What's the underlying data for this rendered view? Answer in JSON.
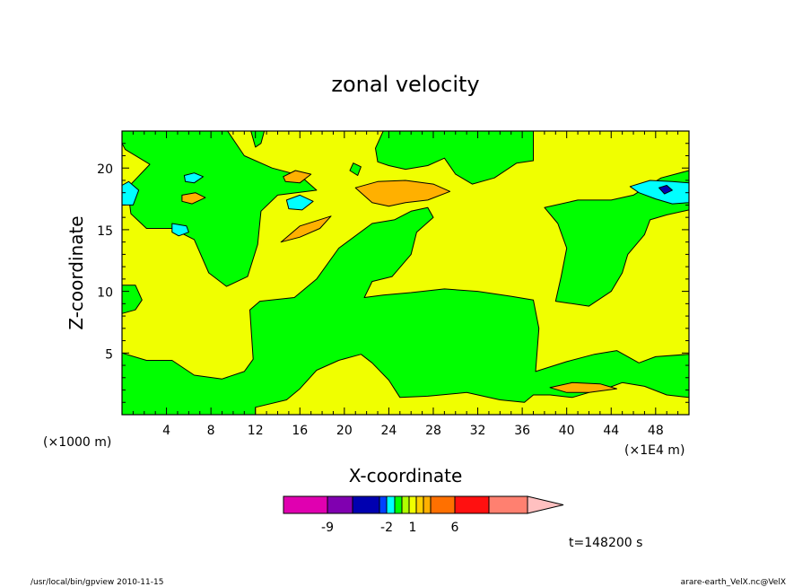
{
  "chart_data": {
    "type": "heatmap",
    "title": "zonal velocity",
    "xlabel": "X-coordinate",
    "ylabel": "Z-coordinate",
    "x_units_note": "(×1E4 m)",
    "y_units_note": "(×1000 m)",
    "xlim": [
      0,
      51
    ],
    "ylim": [
      0,
      23
    ],
    "x_ticks": [
      "4",
      "8",
      "12",
      "16",
      "20",
      "24",
      "28",
      "32",
      "36",
      "40",
      "44",
      "48"
    ],
    "y_ticks": [
      "5",
      "10",
      "15",
      "20"
    ],
    "x_tick_values": [
      4,
      8,
      12,
      16,
      20,
      24,
      28,
      32,
      36,
      40,
      44,
      48
    ],
    "y_tick_values": [
      5,
      10,
      15,
      20
    ],
    "background_level_color": "#f0ff00",
    "regions": [
      {
        "level": "green",
        "color": "#00ff00",
        "points": [
          [
            0,
            23
          ],
          [
            9.5,
            23
          ],
          [
            11,
            21
          ],
          [
            13.5,
            20
          ],
          [
            16,
            19.4
          ],
          [
            17.5,
            18.2
          ],
          [
            14,
            17.8
          ],
          [
            12.5,
            16.5
          ],
          [
            12.2,
            13.8
          ],
          [
            11.3,
            11.2
          ],
          [
            9.4,
            10.4
          ],
          [
            7.8,
            11.5
          ],
          [
            6.5,
            14.2
          ],
          [
            4.5,
            15.1
          ],
          [
            2.2,
            15.1
          ],
          [
            0.8,
            16.3
          ],
          [
            0.5,
            18.4
          ],
          [
            2.5,
            20.3
          ],
          [
            0.3,
            21.5
          ],
          [
            0,
            22
          ]
        ]
      },
      {
        "level": "green",
        "color": "#00ff00",
        "points": [
          [
            0,
            10.5
          ],
          [
            1.2,
            10.5
          ],
          [
            1.8,
            9.3
          ],
          [
            1.2,
            8.5
          ],
          [
            0,
            8.2
          ]
        ]
      },
      {
        "level": "green",
        "color": "#00ff00",
        "points": [
          [
            0,
            5
          ],
          [
            2.2,
            4.4
          ],
          [
            4.5,
            4.4
          ],
          [
            6.5,
            3.2
          ],
          [
            9,
            2.9
          ],
          [
            11,
            3.5
          ],
          [
            11.8,
            4.5
          ],
          [
            11.5,
            8.5
          ],
          [
            12.4,
            9.2
          ],
          [
            15.5,
            9.5
          ],
          [
            17.5,
            11
          ],
          [
            19.5,
            13.5
          ],
          [
            22.5,
            15.5
          ],
          [
            24.5,
            15.8
          ],
          [
            26,
            16.5
          ],
          [
            27.5,
            16.8
          ],
          [
            28,
            16
          ],
          [
            26.5,
            14.8
          ],
          [
            26,
            13
          ],
          [
            24.3,
            11.2
          ],
          [
            22.5,
            10.8
          ],
          [
            21.8,
            9.5
          ],
          [
            23.5,
            9.7
          ],
          [
            26,
            9.9
          ],
          [
            29,
            10.2
          ],
          [
            32,
            10
          ],
          [
            35,
            9.6
          ],
          [
            37,
            9.3
          ],
          [
            37.5,
            7
          ],
          [
            37.2,
            3.5
          ],
          [
            40,
            4.3
          ],
          [
            42.5,
            4.9
          ],
          [
            44.5,
            5.2
          ],
          [
            46.5,
            4.2
          ],
          [
            48,
            4.7
          ],
          [
            51,
            4.9
          ],
          [
            51,
            1.4
          ],
          [
            49,
            1.6
          ],
          [
            47,
            2.3
          ],
          [
            45,
            2.6
          ],
          [
            43.5,
            2.1
          ],
          [
            42,
            1.8
          ],
          [
            40.5,
            1.4
          ],
          [
            38.5,
            1.6
          ],
          [
            37,
            1.6
          ],
          [
            36.2,
            1
          ],
          [
            34,
            1.2
          ],
          [
            31,
            1.8
          ],
          [
            27.5,
            1.5
          ],
          [
            25,
            1.4
          ],
          [
            24,
            2.8
          ],
          [
            22.5,
            4.2
          ],
          [
            21.5,
            4.9
          ],
          [
            19.5,
            4.4
          ],
          [
            17.5,
            3.6
          ],
          [
            16,
            2.1
          ],
          [
            14.8,
            1.2
          ],
          [
            12,
            0.6
          ],
          [
            12,
            0
          ],
          [
            0,
            0
          ]
        ]
      },
      {
        "level": "green",
        "color": "#00ff00",
        "points": [
          [
            33,
            23
          ],
          [
            37,
            23
          ],
          [
            37,
            20.6
          ],
          [
            35.5,
            20.4
          ],
          [
            33.5,
            19.2
          ],
          [
            31.5,
            18.7
          ],
          [
            30,
            19.5
          ],
          [
            29,
            20.8
          ],
          [
            27.5,
            20.2
          ],
          [
            25.5,
            19.9
          ],
          [
            24,
            20.2
          ],
          [
            23,
            20.5
          ],
          [
            22.8,
            21.6
          ],
          [
            23.5,
            23
          ]
        ]
      },
      {
        "level": "green",
        "color": "#00ff00",
        "points": [
          [
            38,
            16.8
          ],
          [
            41,
            17.4
          ],
          [
            44,
            17.4
          ],
          [
            46,
            17.8
          ],
          [
            48.5,
            19.2
          ],
          [
            51,
            19.8
          ],
          [
            51,
            16.6
          ],
          [
            49,
            16.2
          ],
          [
            47.5,
            15.8
          ],
          [
            47,
            14.6
          ],
          [
            45.5,
            13
          ],
          [
            45,
            11.5
          ],
          [
            44,
            10
          ],
          [
            42,
            8.8
          ],
          [
            39,
            9.2
          ],
          [
            39.5,
            11.2
          ],
          [
            40,
            13.5
          ],
          [
            39.2,
            15.5
          ]
        ]
      },
      {
        "level": "green",
        "color": "#00ff00",
        "points": [
          [
            11.6,
            23
          ],
          [
            12.8,
            23
          ],
          [
            12.5,
            22
          ],
          [
            12,
            21.7
          ]
        ]
      },
      {
        "level": "green",
        "color": "#00ff00",
        "points": [
          [
            20.8,
            20.4
          ],
          [
            21.5,
            20.1
          ],
          [
            21.2,
            19.4
          ],
          [
            20.5,
            19.8
          ]
        ]
      },
      {
        "level": "cyan",
        "color": "#00ffff",
        "points": [
          [
            0,
            18.6
          ],
          [
            0.6,
            18.9
          ],
          [
            1.5,
            18.2
          ],
          [
            1,
            17
          ],
          [
            0,
            17
          ]
        ]
      },
      {
        "level": "cyan",
        "color": "#00ffff",
        "points": [
          [
            5.6,
            19.4
          ],
          [
            6.5,
            19.6
          ],
          [
            7.3,
            19.3
          ],
          [
            6.5,
            18.8
          ],
          [
            5.7,
            18.9
          ]
        ]
      },
      {
        "level": "cyan",
        "color": "#00ffff",
        "points": [
          [
            4.5,
            15.5
          ],
          [
            5.8,
            15.3
          ],
          [
            6,
            14.8
          ],
          [
            5.1,
            14.5
          ],
          [
            4.5,
            14.8
          ]
        ]
      },
      {
        "level": "cyan",
        "color": "#00ffff",
        "points": [
          [
            14.8,
            17.4
          ],
          [
            16,
            17.8
          ],
          [
            17.2,
            17.3
          ],
          [
            16.2,
            16.6
          ],
          [
            15,
            16.7
          ]
        ]
      },
      {
        "level": "cyan",
        "color": "#00ffff",
        "points": [
          [
            45.7,
            18.5
          ],
          [
            47.5,
            19
          ],
          [
            49.5,
            18.9
          ],
          [
            51,
            18.8
          ],
          [
            51,
            17.2
          ],
          [
            49.5,
            17.1
          ],
          [
            48,
            17.5
          ],
          [
            46.5,
            18
          ]
        ]
      },
      {
        "level": "orange",
        "color": "#ffb000",
        "points": [
          [
            14.5,
            19.3
          ],
          [
            15.6,
            19.8
          ],
          [
            17,
            19.5
          ],
          [
            16,
            18.8
          ],
          [
            14.7,
            18.9
          ]
        ]
      },
      {
        "level": "orange",
        "color": "#ffb000",
        "points": [
          [
            5.4,
            17.8
          ],
          [
            6.6,
            18
          ],
          [
            7.5,
            17.6
          ],
          [
            6.3,
            17.1
          ],
          [
            5.4,
            17.3
          ]
        ]
      },
      {
        "level": "orange",
        "color": "#ffb000",
        "points": [
          [
            21,
            18.4
          ],
          [
            23,
            18.9
          ],
          [
            25.5,
            19
          ],
          [
            28,
            18.7
          ],
          [
            29.5,
            18.1
          ],
          [
            27.5,
            17.4
          ],
          [
            25.5,
            17.2
          ],
          [
            24,
            16.9
          ],
          [
            22.5,
            17.2
          ]
        ]
      },
      {
        "level": "orange",
        "color": "#ffb000",
        "points": [
          [
            14.3,
            14
          ],
          [
            16,
            15.3
          ],
          [
            18.8,
            16.1
          ],
          [
            17.8,
            15.1
          ],
          [
            16,
            14.4
          ]
        ]
      },
      {
        "level": "orange",
        "color": "#ffb000",
        "points": [
          [
            38.5,
            2.2
          ],
          [
            40.5,
            2.6
          ],
          [
            43,
            2.5
          ],
          [
            44.5,
            2.1
          ],
          [
            42,
            1.8
          ],
          [
            40,
            1.8
          ]
        ]
      },
      {
        "level": "blue",
        "color": "#0000b0",
        "points": [
          [
            48.3,
            18.4
          ],
          [
            49,
            18.6
          ],
          [
            49.5,
            18.2
          ],
          [
            48.8,
            17.9
          ]
        ]
      }
    ],
    "colorbar": {
      "segments": [
        "#e000b0",
        "#8000b0",
        "#0000b0",
        "#0040ff",
        "#00ffff",
        "#00ff00",
        "#b0ff00",
        "#f0ff00",
        "#ffd000",
        "#ffb000",
        "#ff7000",
        "#ff1010",
        "#ff8070"
      ],
      "arrow_color": "#ffc0c0",
      "labels": [
        "-9",
        "-2",
        "1",
        "6"
      ]
    },
    "time_label": "t=148200 s"
  },
  "footer": {
    "left": "/usr/local/bin/gpview   2010-11-15",
    "right": "arare-earth_VelX.nc@VelX"
  }
}
